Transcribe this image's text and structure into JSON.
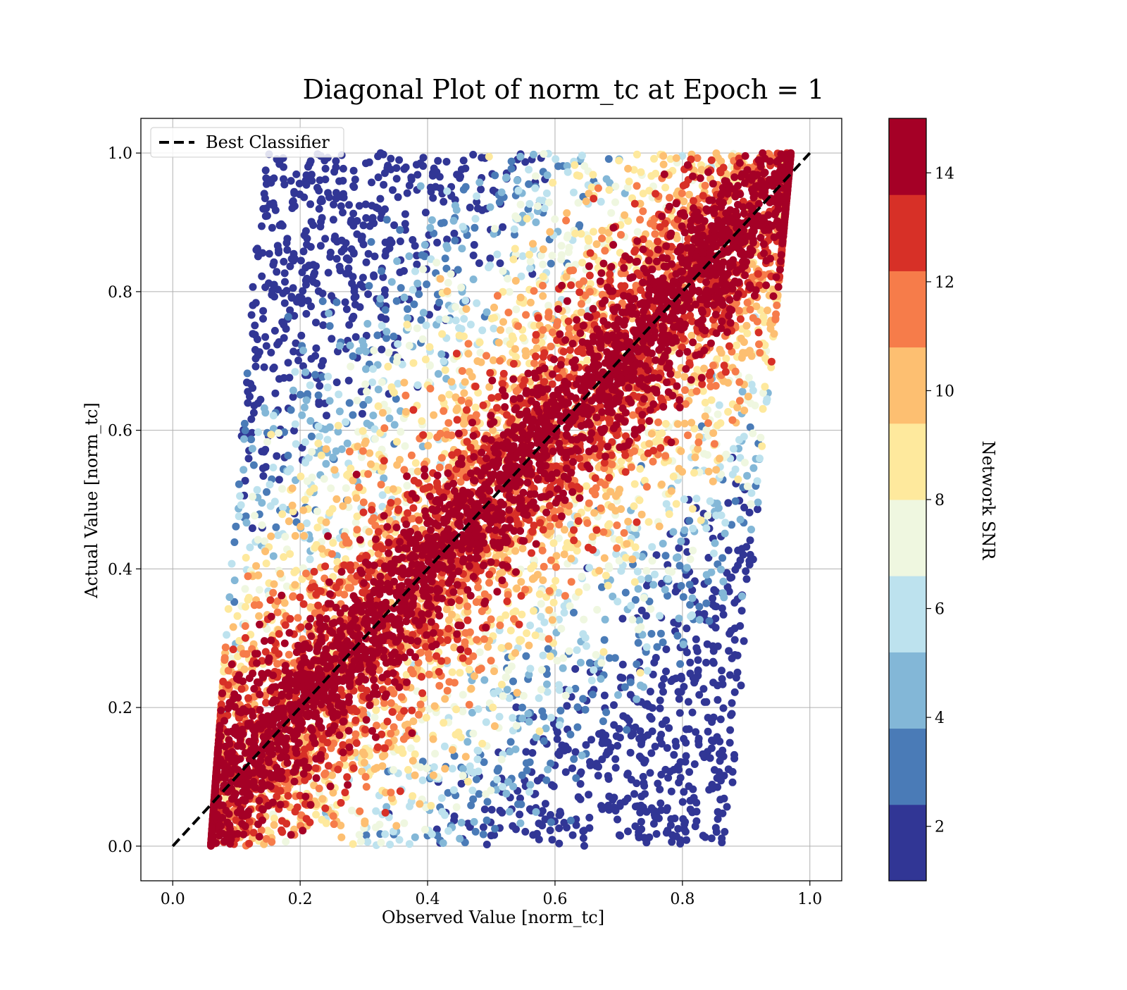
{
  "chart_data": {
    "type": "scatter",
    "title": "Diagonal Plot of norm_tc at Epoch = 1",
    "xlabel": "Observed Value [norm_tc]",
    "ylabel": "Actual Value [norm_tc]",
    "xlim": [
      -0.05,
      1.05
    ],
    "ylim": [
      -0.05,
      1.05
    ],
    "xticks": [
      "0.0",
      "0.2",
      "0.4",
      "0.6",
      "0.8",
      "1.0"
    ],
    "yticks": [
      "0.0",
      "0.2",
      "0.4",
      "0.6",
      "0.8",
      "1.0"
    ],
    "grid": true,
    "legend": {
      "placement": "upper-left",
      "entries": [
        "Best Classifier"
      ]
    },
    "reference_line": {
      "name": "Best Classifier",
      "style": "dashed",
      "color": "#000000",
      "x": [
        0,
        1
      ],
      "y": [
        0,
        1
      ]
    },
    "scatter_description": {
      "point_count_visible": "dense (tens of thousands)",
      "x_range_at_y0": [
        0.06,
        0.87
      ],
      "x_range_at_y1": [
        0.14,
        0.97
      ],
      "high_snr_band_around_diagonal": true
    },
    "colorbar": {
      "label": "Network SNR",
      "range": [
        1,
        15
      ],
      "ticks": [
        "2",
        "4",
        "6",
        "8",
        "10",
        "12",
        "14"
      ],
      "tick_values": [
        2,
        4,
        6,
        8,
        10,
        12,
        14
      ],
      "bins": 10,
      "colormap": "RdYlBu_r",
      "colors": [
        "#313695",
        "#4a7bb7",
        "#83b7d7",
        "#bde2ee",
        "#eff7e0",
        "#fee99d",
        "#fdbf71",
        "#f67c4a",
        "#d73027",
        "#a50026"
      ]
    }
  }
}
